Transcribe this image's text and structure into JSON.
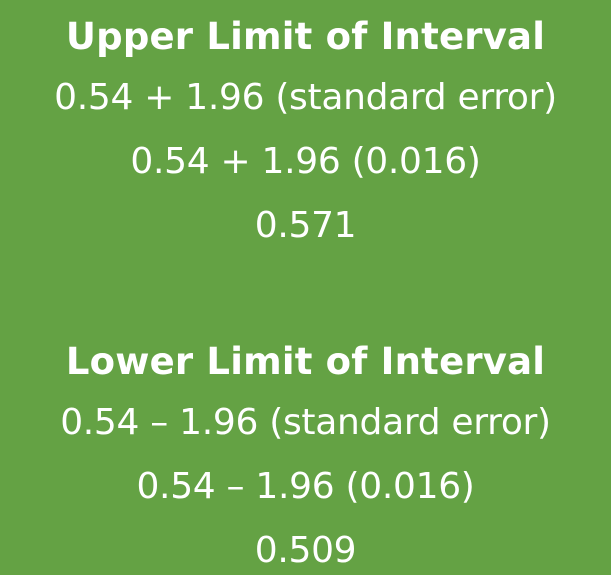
{
  "upper": {
    "heading": "Upper Limit of Interval",
    "lines": [
      "0.54 + 1.96 (standard error)",
      "0.54 + 1.96 (0.016)",
      "0.571"
    ]
  },
  "lower": {
    "heading": "Lower Limit of Interval",
    "lines": [
      "0.54 – 1.96 (standard error)",
      "0.54 – 1.96 (0.016)",
      "0.509"
    ]
  },
  "colors": {
    "background": "#64a244",
    "text": "#ffffff"
  }
}
